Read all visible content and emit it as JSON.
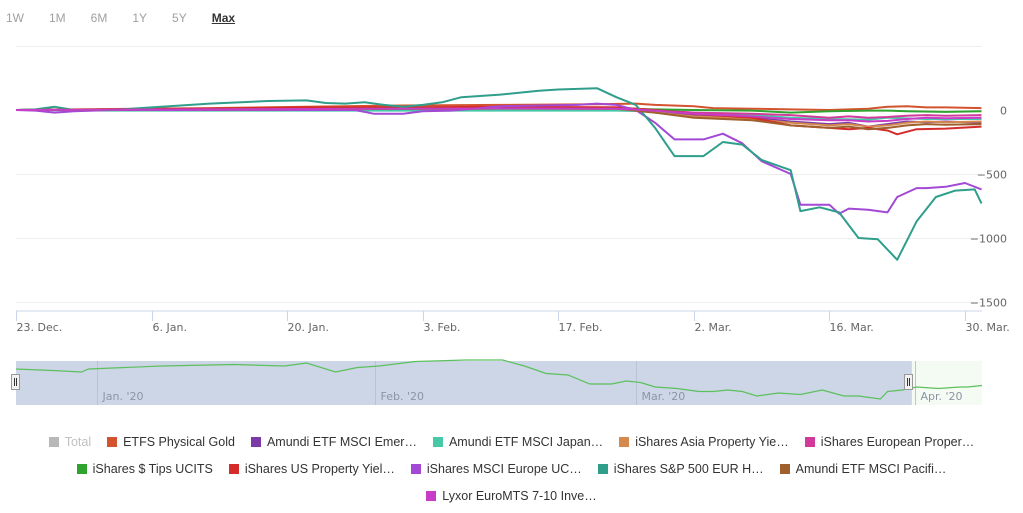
{
  "range_selector": {
    "buttons": [
      "1W",
      "1M",
      "6M",
      "1Y",
      "5Y",
      "Max"
    ],
    "active": "Max"
  },
  "chart_data": {
    "type": "line",
    "title": "",
    "xlabel": "",
    "ylabel": "",
    "x_unit": "days since 23 Dec 2019",
    "x_ticks": [
      {
        "day": 0,
        "label": "23. Dec."
      },
      {
        "day": 14,
        "label": "6. Jan."
      },
      {
        "day": 28,
        "label": "20. Jan."
      },
      {
        "day": 42,
        "label": "3. Feb."
      },
      {
        "day": 56,
        "label": "17. Feb."
      },
      {
        "day": 70,
        "label": "2. Mar."
      },
      {
        "day": 84,
        "label": "16. Mar."
      },
      {
        "day": 98,
        "label": "30. Mar."
      }
    ],
    "xlim": [
      0,
      99.7
    ],
    "y_ticks": [
      {
        "value": 500,
        "label": ""
      },
      {
        "value": 0,
        "label": "0"
      },
      {
        "value": -500,
        "label": "−500"
      },
      {
        "value": -1000,
        "label": "−1000"
      },
      {
        "value": -1500,
        "label": "−1500"
      }
    ],
    "ylim": [
      -1550,
      500
    ],
    "grid": true,
    "legend_position": "bottom",
    "series": [
      {
        "name": "ETFS Physical Gold",
        "color": "#d4532f",
        "points": [
          [
            0,
            0
          ],
          [
            10,
            8
          ],
          [
            20,
            15
          ],
          [
            30,
            25
          ],
          [
            40,
            35
          ],
          [
            50,
            40
          ],
          [
            60,
            45
          ],
          [
            64,
            50
          ],
          [
            66,
            40
          ],
          [
            70,
            30
          ],
          [
            72,
            15
          ],
          [
            76,
            10
          ],
          [
            80,
            5
          ],
          [
            84,
            0
          ],
          [
            88,
            10
          ],
          [
            90,
            25
          ],
          [
            92,
            30
          ],
          [
            94,
            20
          ],
          [
            96,
            20
          ],
          [
            99.7,
            15
          ]
        ]
      },
      {
        "name": "Amundi ETF MSCI Emer…",
        "color": "#7b3aa8",
        "points": [
          [
            0,
            0
          ],
          [
            10,
            5
          ],
          [
            20,
            10
          ],
          [
            30,
            15
          ],
          [
            40,
            15
          ],
          [
            50,
            20
          ],
          [
            62,
            15
          ],
          [
            66,
            -10
          ],
          [
            70,
            -40
          ],
          [
            76,
            -60
          ],
          [
            80,
            -90
          ],
          [
            84,
            -110
          ],
          [
            86,
            -100
          ],
          [
            88,
            -130
          ],
          [
            90,
            -110
          ],
          [
            92,
            -90
          ],
          [
            94,
            -95
          ],
          [
            96,
            -90
          ],
          [
            99.7,
            -100
          ]
        ]
      },
      {
        "name": "Amundi ETF MSCI Japan…",
        "color": "#45c9a6",
        "points": [
          [
            0,
            0
          ],
          [
            10,
            -5
          ],
          [
            20,
            -5
          ],
          [
            30,
            -5
          ],
          [
            40,
            -5
          ],
          [
            50,
            -5
          ],
          [
            62,
            -5
          ],
          [
            66,
            -10
          ],
          [
            70,
            -20
          ],
          [
            76,
            -40
          ],
          [
            80,
            -60
          ],
          [
            84,
            -70
          ],
          [
            88,
            -75
          ],
          [
            90,
            -60
          ],
          [
            94,
            -70
          ],
          [
            96,
            -70
          ],
          [
            99.7,
            -70
          ]
        ]
      },
      {
        "name": "iShares Asia Property Yie…",
        "color": "#d48a4e",
        "points": [
          [
            0,
            0
          ],
          [
            10,
            5
          ],
          [
            20,
            10
          ],
          [
            30,
            10
          ],
          [
            40,
            10
          ],
          [
            50,
            15
          ],
          [
            62,
            10
          ],
          [
            66,
            -20
          ],
          [
            70,
            -50
          ],
          [
            76,
            -70
          ],
          [
            80,
            -100
          ],
          [
            84,
            -120
          ],
          [
            86,
            -110
          ],
          [
            88,
            -130
          ],
          [
            90,
            -120
          ],
          [
            92,
            -100
          ],
          [
            94,
            -90
          ],
          [
            96,
            -95
          ],
          [
            99.7,
            -90
          ]
        ]
      },
      {
        "name": "iShares European Proper…",
        "color": "#d23a9a",
        "points": [
          [
            0,
            0
          ],
          [
            10,
            5
          ],
          [
            20,
            10
          ],
          [
            30,
            15
          ],
          [
            40,
            10
          ],
          [
            50,
            20
          ],
          [
            62,
            20
          ],
          [
            66,
            0
          ],
          [
            70,
            -20
          ],
          [
            76,
            -30
          ],
          [
            80,
            -40
          ],
          [
            84,
            -60
          ],
          [
            86,
            -50
          ],
          [
            88,
            -60
          ],
          [
            90,
            -55
          ],
          [
            92,
            -45
          ],
          [
            94,
            -40
          ],
          [
            96,
            -45
          ],
          [
            99.7,
            -40
          ]
        ]
      },
      {
        "name": "iShares $ Tips UCITS",
        "color": "#2ea32e",
        "points": [
          [
            0,
            0
          ],
          [
            10,
            2
          ],
          [
            20,
            4
          ],
          [
            30,
            6
          ],
          [
            40,
            8
          ],
          [
            50,
            10
          ],
          [
            62,
            10
          ],
          [
            66,
            5
          ],
          [
            70,
            0
          ],
          [
            76,
            -5
          ],
          [
            80,
            -20
          ],
          [
            84,
            -10
          ],
          [
            88,
            -5
          ],
          [
            90,
            -5
          ],
          [
            92,
            -10
          ],
          [
            96,
            -15
          ],
          [
            99.7,
            -10
          ]
        ]
      },
      {
        "name": "iShares US Property Yiel…",
        "color": "#d52b2b",
        "points": [
          [
            0,
            0
          ],
          [
            10,
            5
          ],
          [
            20,
            10
          ],
          [
            30,
            20
          ],
          [
            40,
            20
          ],
          [
            50,
            25
          ],
          [
            62,
            20
          ],
          [
            66,
            0
          ],
          [
            70,
            -30
          ],
          [
            76,
            -60
          ],
          [
            78,
            -90
          ],
          [
            80,
            -120
          ],
          [
            84,
            -140
          ],
          [
            86,
            -150
          ],
          [
            88,
            -140
          ],
          [
            90,
            -160
          ],
          [
            91,
            -190
          ],
          [
            93,
            -150
          ],
          [
            96,
            -145
          ],
          [
            99.7,
            -130
          ]
        ]
      },
      {
        "name": "iShares MSCI Europe UC…",
        "color": "#a349d6",
        "points": [
          [
            0,
            0
          ],
          [
            2,
            -5
          ],
          [
            4,
            -20
          ],
          [
            6,
            -10
          ],
          [
            10,
            0
          ],
          [
            20,
            0
          ],
          [
            28,
            0
          ],
          [
            35,
            0
          ],
          [
            37,
            -30
          ],
          [
            40,
            -30
          ],
          [
            42,
            -10
          ],
          [
            45,
            -5
          ],
          [
            50,
            30
          ],
          [
            58,
            40
          ],
          [
            60,
            50
          ],
          [
            62,
            40
          ],
          [
            64,
            0
          ],
          [
            66,
            -100
          ],
          [
            68,
            -230
          ],
          [
            71,
            -230
          ],
          [
            73,
            -185
          ],
          [
            75,
            -260
          ],
          [
            77,
            -400
          ],
          [
            80,
            -500
          ],
          [
            81,
            -740
          ],
          [
            84,
            -740
          ],
          [
            85,
            -810
          ],
          [
            86,
            -770
          ],
          [
            88,
            -780
          ],
          [
            90,
            -800
          ],
          [
            91,
            -680
          ],
          [
            93,
            -610
          ],
          [
            94,
            -610
          ],
          [
            96,
            -600
          ],
          [
            98,
            -570
          ],
          [
            99.7,
            -620
          ]
        ]
      },
      {
        "name": "iShares S&P 500 EUR H…",
        "color": "#2f9e8b",
        "points": [
          [
            0,
            0
          ],
          [
            2,
            5
          ],
          [
            4,
            25
          ],
          [
            6,
            0
          ],
          [
            10,
            0
          ],
          [
            14,
            20
          ],
          [
            20,
            50
          ],
          [
            26,
            70
          ],
          [
            30,
            75
          ],
          [
            32,
            55
          ],
          [
            34,
            50
          ],
          [
            36,
            60
          ],
          [
            38,
            40
          ],
          [
            40,
            25
          ],
          [
            42,
            40
          ],
          [
            44,
            60
          ],
          [
            46,
            100
          ],
          [
            50,
            120
          ],
          [
            54,
            150
          ],
          [
            56,
            160
          ],
          [
            60,
            170
          ],
          [
            62,
            100
          ],
          [
            64,
            40
          ],
          [
            66,
            -140
          ],
          [
            68,
            -360
          ],
          [
            71,
            -360
          ],
          [
            73,
            -250
          ],
          [
            75,
            -270
          ],
          [
            77,
            -390
          ],
          [
            80,
            -470
          ],
          [
            81,
            -790
          ],
          [
            83,
            -760
          ],
          [
            85,
            -800
          ],
          [
            87,
            -1000
          ],
          [
            89,
            -1010
          ],
          [
            91,
            -1170
          ],
          [
            93,
            -870
          ],
          [
            95,
            -680
          ],
          [
            97,
            -630
          ],
          [
            99,
            -620
          ],
          [
            99.7,
            -730
          ]
        ]
      },
      {
        "name": "Amundi ETF MSCI Pacifi…",
        "color": "#a0602e",
        "points": [
          [
            0,
            0
          ],
          [
            10,
            3
          ],
          [
            20,
            5
          ],
          [
            30,
            8
          ],
          [
            40,
            10
          ],
          [
            50,
            12
          ],
          [
            62,
            10
          ],
          [
            66,
            -20
          ],
          [
            70,
            -60
          ],
          [
            76,
            -80
          ],
          [
            80,
            -120
          ],
          [
            84,
            -140
          ],
          [
            86,
            -130
          ],
          [
            88,
            -150
          ],
          [
            90,
            -140
          ],
          [
            92,
            -120
          ],
          [
            94,
            -110
          ],
          [
            96,
            -115
          ],
          [
            99.7,
            -110
          ]
        ]
      },
      {
        "name": "Lyxor EuroMTS 7-10 Inve…",
        "color": "#c83dc8",
        "points": [
          [
            0,
            0
          ],
          [
            10,
            2
          ],
          [
            20,
            5
          ],
          [
            30,
            8
          ],
          [
            40,
            10
          ],
          [
            50,
            12
          ],
          [
            62,
            10
          ],
          [
            66,
            -5
          ],
          [
            70,
            -30
          ],
          [
            76,
            -50
          ],
          [
            80,
            -70
          ],
          [
            84,
            -80
          ],
          [
            86,
            -80
          ],
          [
            88,
            -90
          ],
          [
            90,
            -85
          ],
          [
            92,
            -70
          ],
          [
            94,
            -60
          ],
          [
            96,
            -65
          ],
          [
            99.7,
            -60
          ]
        ]
      }
    ]
  },
  "legend": {
    "items": [
      {
        "name": "Total",
        "color": "#b8b8b8",
        "hidden": true
      },
      {
        "name": "ETFS Physical Gold",
        "color": "#d4532f"
      },
      {
        "name": "Amundi ETF MSCI Emer…",
        "color": "#7b3aa8"
      },
      {
        "name": "Amundi ETF MSCI Japan…",
        "color": "#45c9a6"
      },
      {
        "name": "iShares Asia Property Yie…",
        "color": "#d48a4e"
      },
      {
        "name": "iShares European Proper…",
        "color": "#d23a9a"
      },
      {
        "name": "iShares $ Tips UCITS",
        "color": "#2ea32e"
      },
      {
        "name": "iShares US Property Yiel…",
        "color": "#d52b2b"
      },
      {
        "name": "iShares MSCI Europe UC…",
        "color": "#a349d6"
      },
      {
        "name": "iShares S&P 500 EUR H…",
        "color": "#2f9e8b"
      },
      {
        "name": "Amundi ETF MSCI Pacifi…",
        "color": "#a0602e"
      },
      {
        "name": "Lyxor EuroMTS 7-10 Inve…",
        "color": "#c83dc8"
      }
    ],
    "rows": [
      [
        0,
        1,
        2,
        3,
        4,
        5
      ],
      [
        6,
        7,
        8,
        9,
        10
      ],
      [
        11
      ]
    ]
  },
  "navigator": {
    "labels": [
      {
        "day": 9,
        "label": "Jan. '20"
      },
      {
        "day": 40,
        "label": "Feb. '20"
      },
      {
        "day": 69,
        "label": "Mar. '20"
      },
      {
        "day": 100,
        "label": "Apr. '20"
      }
    ],
    "selected_range_days": [
      0,
      99.7
    ],
    "full_range_days": [
      0,
      107.5
    ],
    "line_color": "#5cc05c",
    "series_points": [
      [
        0,
        0
      ],
      [
        5,
        -5
      ],
      [
        9,
        -10
      ],
      [
        10,
        0
      ],
      [
        20,
        10
      ],
      [
        30,
        15
      ],
      [
        37,
        10
      ],
      [
        40,
        20
      ],
      [
        44,
        -10
      ],
      [
        47,
        5
      ],
      [
        50,
        10
      ],
      [
        55,
        25
      ],
      [
        62,
        30
      ],
      [
        67,
        30
      ],
      [
        70,
        10
      ],
      [
        73,
        -15
      ],
      [
        76,
        -20
      ],
      [
        79,
        -50
      ],
      [
        82,
        -50
      ],
      [
        84,
        -40
      ],
      [
        86,
        -45
      ],
      [
        88,
        -60
      ],
      [
        91,
        -65
      ],
      [
        94,
        -75
      ],
      [
        96,
        -75
      ],
      [
        98,
        -70
      ],
      [
        100,
        -75
      ],
      [
        102,
        -90
      ],
      [
        105,
        -80
      ],
      [
        108,
        -85
      ],
      [
        111,
        -70
      ],
      [
        114,
        -90
      ],
      [
        116,
        -90
      ],
      [
        119,
        -100
      ],
      [
        120,
        -75
      ],
      [
        122,
        -70
      ],
      [
        124,
        -60
      ],
      [
        127,
        -65
      ],
      [
        130,
        -60
      ],
      [
        131,
        -60
      ],
      [
        133,
        -55
      ]
    ]
  }
}
